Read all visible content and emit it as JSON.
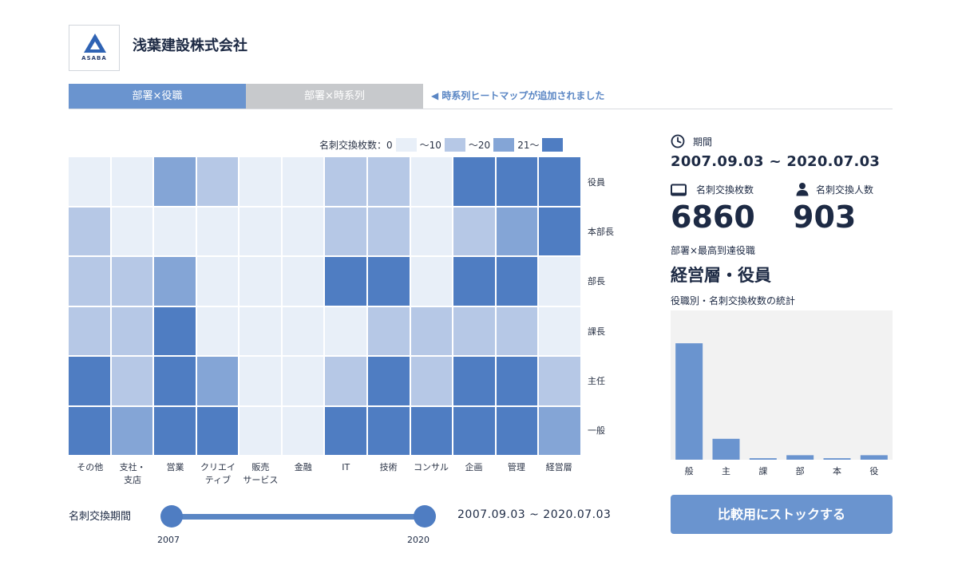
{
  "header": {
    "logo_text": "ASABA",
    "company_name": "浅葉建設株式会社"
  },
  "tabs": [
    {
      "label": "部署×役職",
      "active": true
    },
    {
      "label": "部署×時系列",
      "active": false
    }
  ],
  "notice": "◀ 時系列ヒートマップが追加されました",
  "legend": {
    "title": "名刺交換枚数：0",
    "l1": "〜10",
    "l2": "〜20",
    "l3": "21〜",
    "colors": [
      "#e8eff8",
      "#b6c8e6",
      "#84a5d6",
      "#4f7dc2"
    ]
  },
  "heatmap": {
    "columns": [
      "その他",
      "支社・\n支店",
      "営業",
      "クリエイ\nティブ",
      "販売\nサービス",
      "金融",
      "IT",
      "技術",
      "コンサル",
      "企画",
      "管理",
      "経営層"
    ],
    "rows": [
      "役員",
      "本部長",
      "部長",
      "課長",
      "主任",
      "一般"
    ],
    "levels": [
      [
        0,
        0,
        2,
        1,
        0,
        0,
        1,
        1,
        0,
        3,
        3,
        3
      ],
      [
        1,
        0,
        0,
        0,
        0,
        0,
        1,
        1,
        0,
        1,
        2,
        3
      ],
      [
        1,
        1,
        2,
        0,
        0,
        0,
        3,
        3,
        0,
        3,
        3,
        0
      ],
      [
        1,
        1,
        3,
        0,
        0,
        0,
        0,
        1,
        1,
        1,
        1,
        0
      ],
      [
        3,
        1,
        3,
        2,
        0,
        0,
        1,
        3,
        1,
        3,
        3,
        1
      ],
      [
        3,
        2,
        3,
        3,
        0,
        0,
        3,
        3,
        3,
        3,
        3,
        2
      ]
    ]
  },
  "slider": {
    "label": "名刺交換期間",
    "min_label": "2007",
    "max_label": "2020",
    "range_text": "2007.09.03 ~ 2020.07.03"
  },
  "stats": {
    "period_label": "期間",
    "period_value": "2007.09.03 ~ 2020.07.03",
    "cards_label": "名刺交換枚数",
    "cards_value": "6860",
    "people_label": "名刺交換人数",
    "people_value": "903",
    "highest_label": "部署×最高到達役職",
    "highest_value": "経営層・役員",
    "chart_title": "役職別・名刺交換枚数の統計"
  },
  "chart_data": {
    "type": "bar",
    "categories": [
      "般",
      "主",
      "課",
      "部",
      "本",
      "役"
    ],
    "values": [
      78,
      14,
      1,
      3,
      1,
      3
    ],
    "ylim": [
      0,
      100
    ],
    "bar_color": "#6a94cf",
    "background": "#f2f2f2"
  },
  "button": {
    "stock_label": "比較用にストックする"
  }
}
